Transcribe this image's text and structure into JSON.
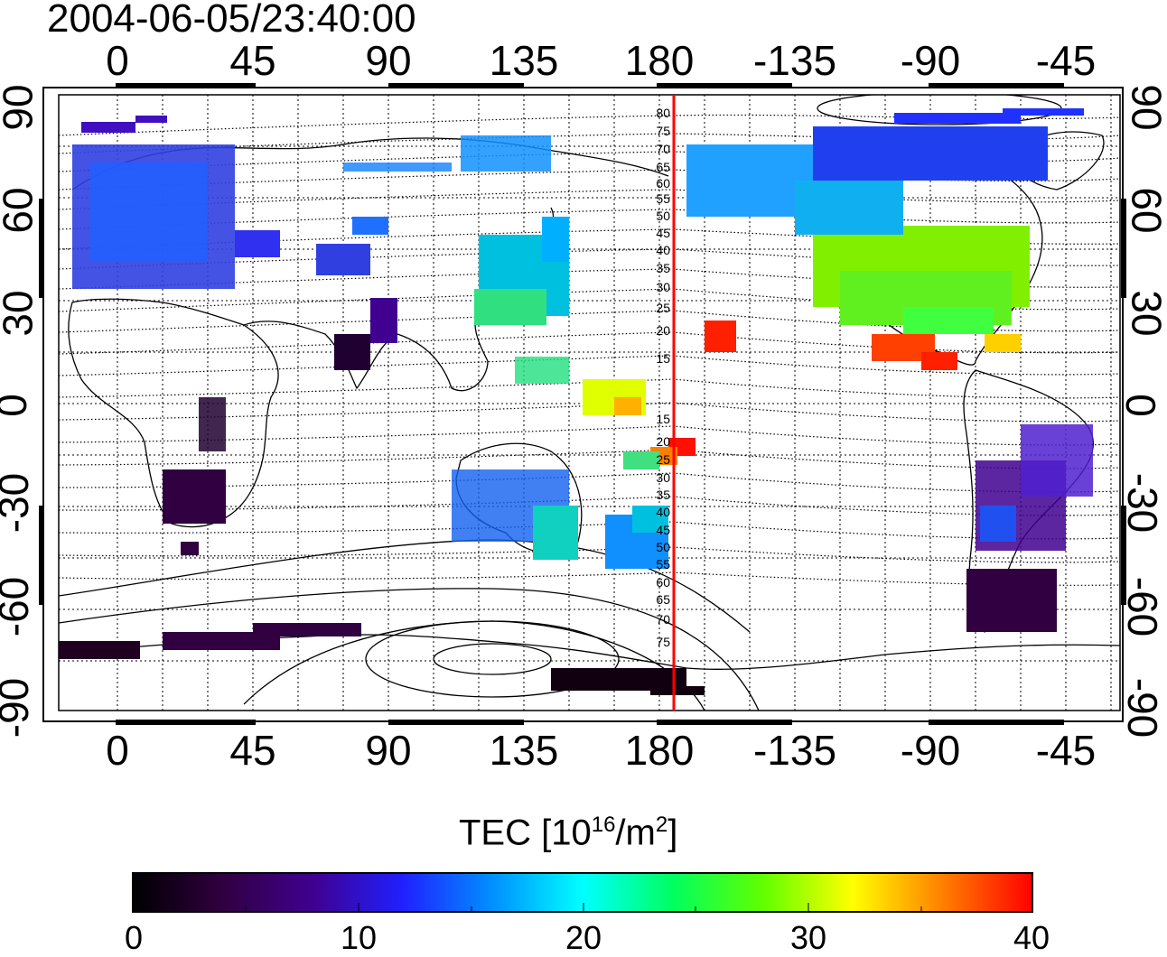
{
  "title": "2004-06-05/23:40:00",
  "x_ticks_top": [
    "0",
    "45",
    "90",
    "135",
    "180",
    "-135",
    "-90",
    "-45"
  ],
  "x_ticks_bottom": [
    "0",
    "45",
    "90",
    "135",
    "180",
    "-135",
    "-90",
    "-45"
  ],
  "y_ticks_left": [
    "90",
    "60",
    "30",
    "0",
    "-30",
    "-60",
    "-90"
  ],
  "y_ticks_right": [
    "90",
    "60",
    "30",
    "0",
    "-30",
    "-60",
    "-90"
  ],
  "meridian_line_color": "#ff0000",
  "contour_labels": [
    "80",
    "75",
    "70",
    "65",
    "60",
    "55",
    "50",
    "45",
    "40",
    "35",
    "30",
    "25",
    "20",
    "15",
    "15",
    "20",
    "25",
    "30",
    "35",
    "40",
    "45",
    "50",
    "55",
    "60",
    "65",
    "70",
    "75"
  ],
  "colorbar": {
    "label_text": "TEC  [10",
    "label_sup1": "16",
    "label_mid": "/m",
    "label_sup2": "2",
    "label_end": "]",
    "ticks": [
      "0",
      "10",
      "20",
      "30",
      "40"
    ],
    "range": [
      0,
      40
    ],
    "colors": [
      "#000000",
      "#300040",
      "#400090",
      "#2020ff",
      "#0090ff",
      "#00ffff",
      "#00ff60",
      "#60ff00",
      "#ffff00",
      "#ff8000",
      "#ff0000"
    ]
  }
}
